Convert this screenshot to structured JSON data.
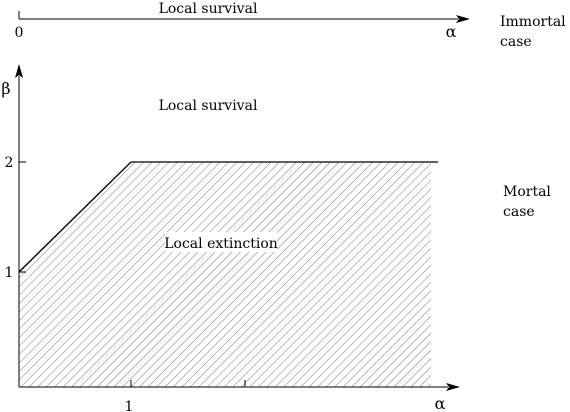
{
  "top_axis": {
    "label": "Local survival",
    "origin": "0",
    "alpha": "α"
  },
  "immortal_case": {
    "line1": "Immortal",
    "line2": "case"
  },
  "plot": {
    "y_label": "β",
    "x_label": "α",
    "y_ticks": [
      "2",
      "1"
    ],
    "x_ticks": [
      "1"
    ],
    "region_upper": "Local survival",
    "region_lower": "Local extinction"
  },
  "mortal_case": {
    "line1": "Mortal",
    "line2": "case"
  },
  "colors": {
    "ink": "#000000",
    "hatch": "#555555",
    "background": "#ffffff"
  }
}
